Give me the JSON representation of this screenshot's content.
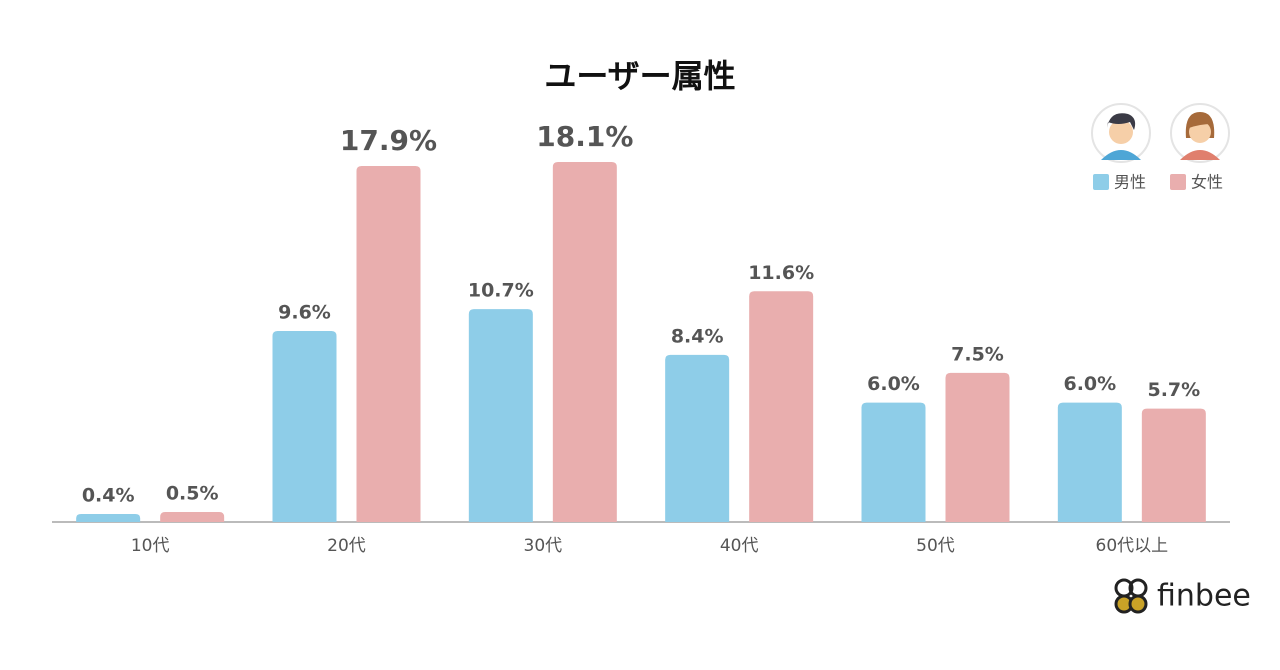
{
  "chart_data": {
    "type": "bar",
    "title": "ユーザー属性",
    "categories": [
      "10代",
      "20代",
      "30代",
      "40代",
      "50代",
      "60代以上"
    ],
    "series": [
      {
        "name": "男性",
        "color": "#8ecde8",
        "values": [
          0.4,
          9.6,
          10.7,
          8.4,
          6.0,
          6.0
        ],
        "value_labels": [
          "0.4%",
          "9.6%",
          "10.7%",
          "8.4%",
          "6.0%",
          "6.0%"
        ]
      },
      {
        "name": "女性",
        "color": "#e9aeae",
        "values": [
          0.5,
          17.9,
          18.1,
          11.6,
          7.5,
          5.7
        ],
        "value_labels": [
          "0.5%",
          "17.9%",
          "18.1%",
          "11.6%",
          "7.5%",
          "5.7%"
        ]
      }
    ],
    "legend": "top-right",
    "logo": "finbee"
  }
}
